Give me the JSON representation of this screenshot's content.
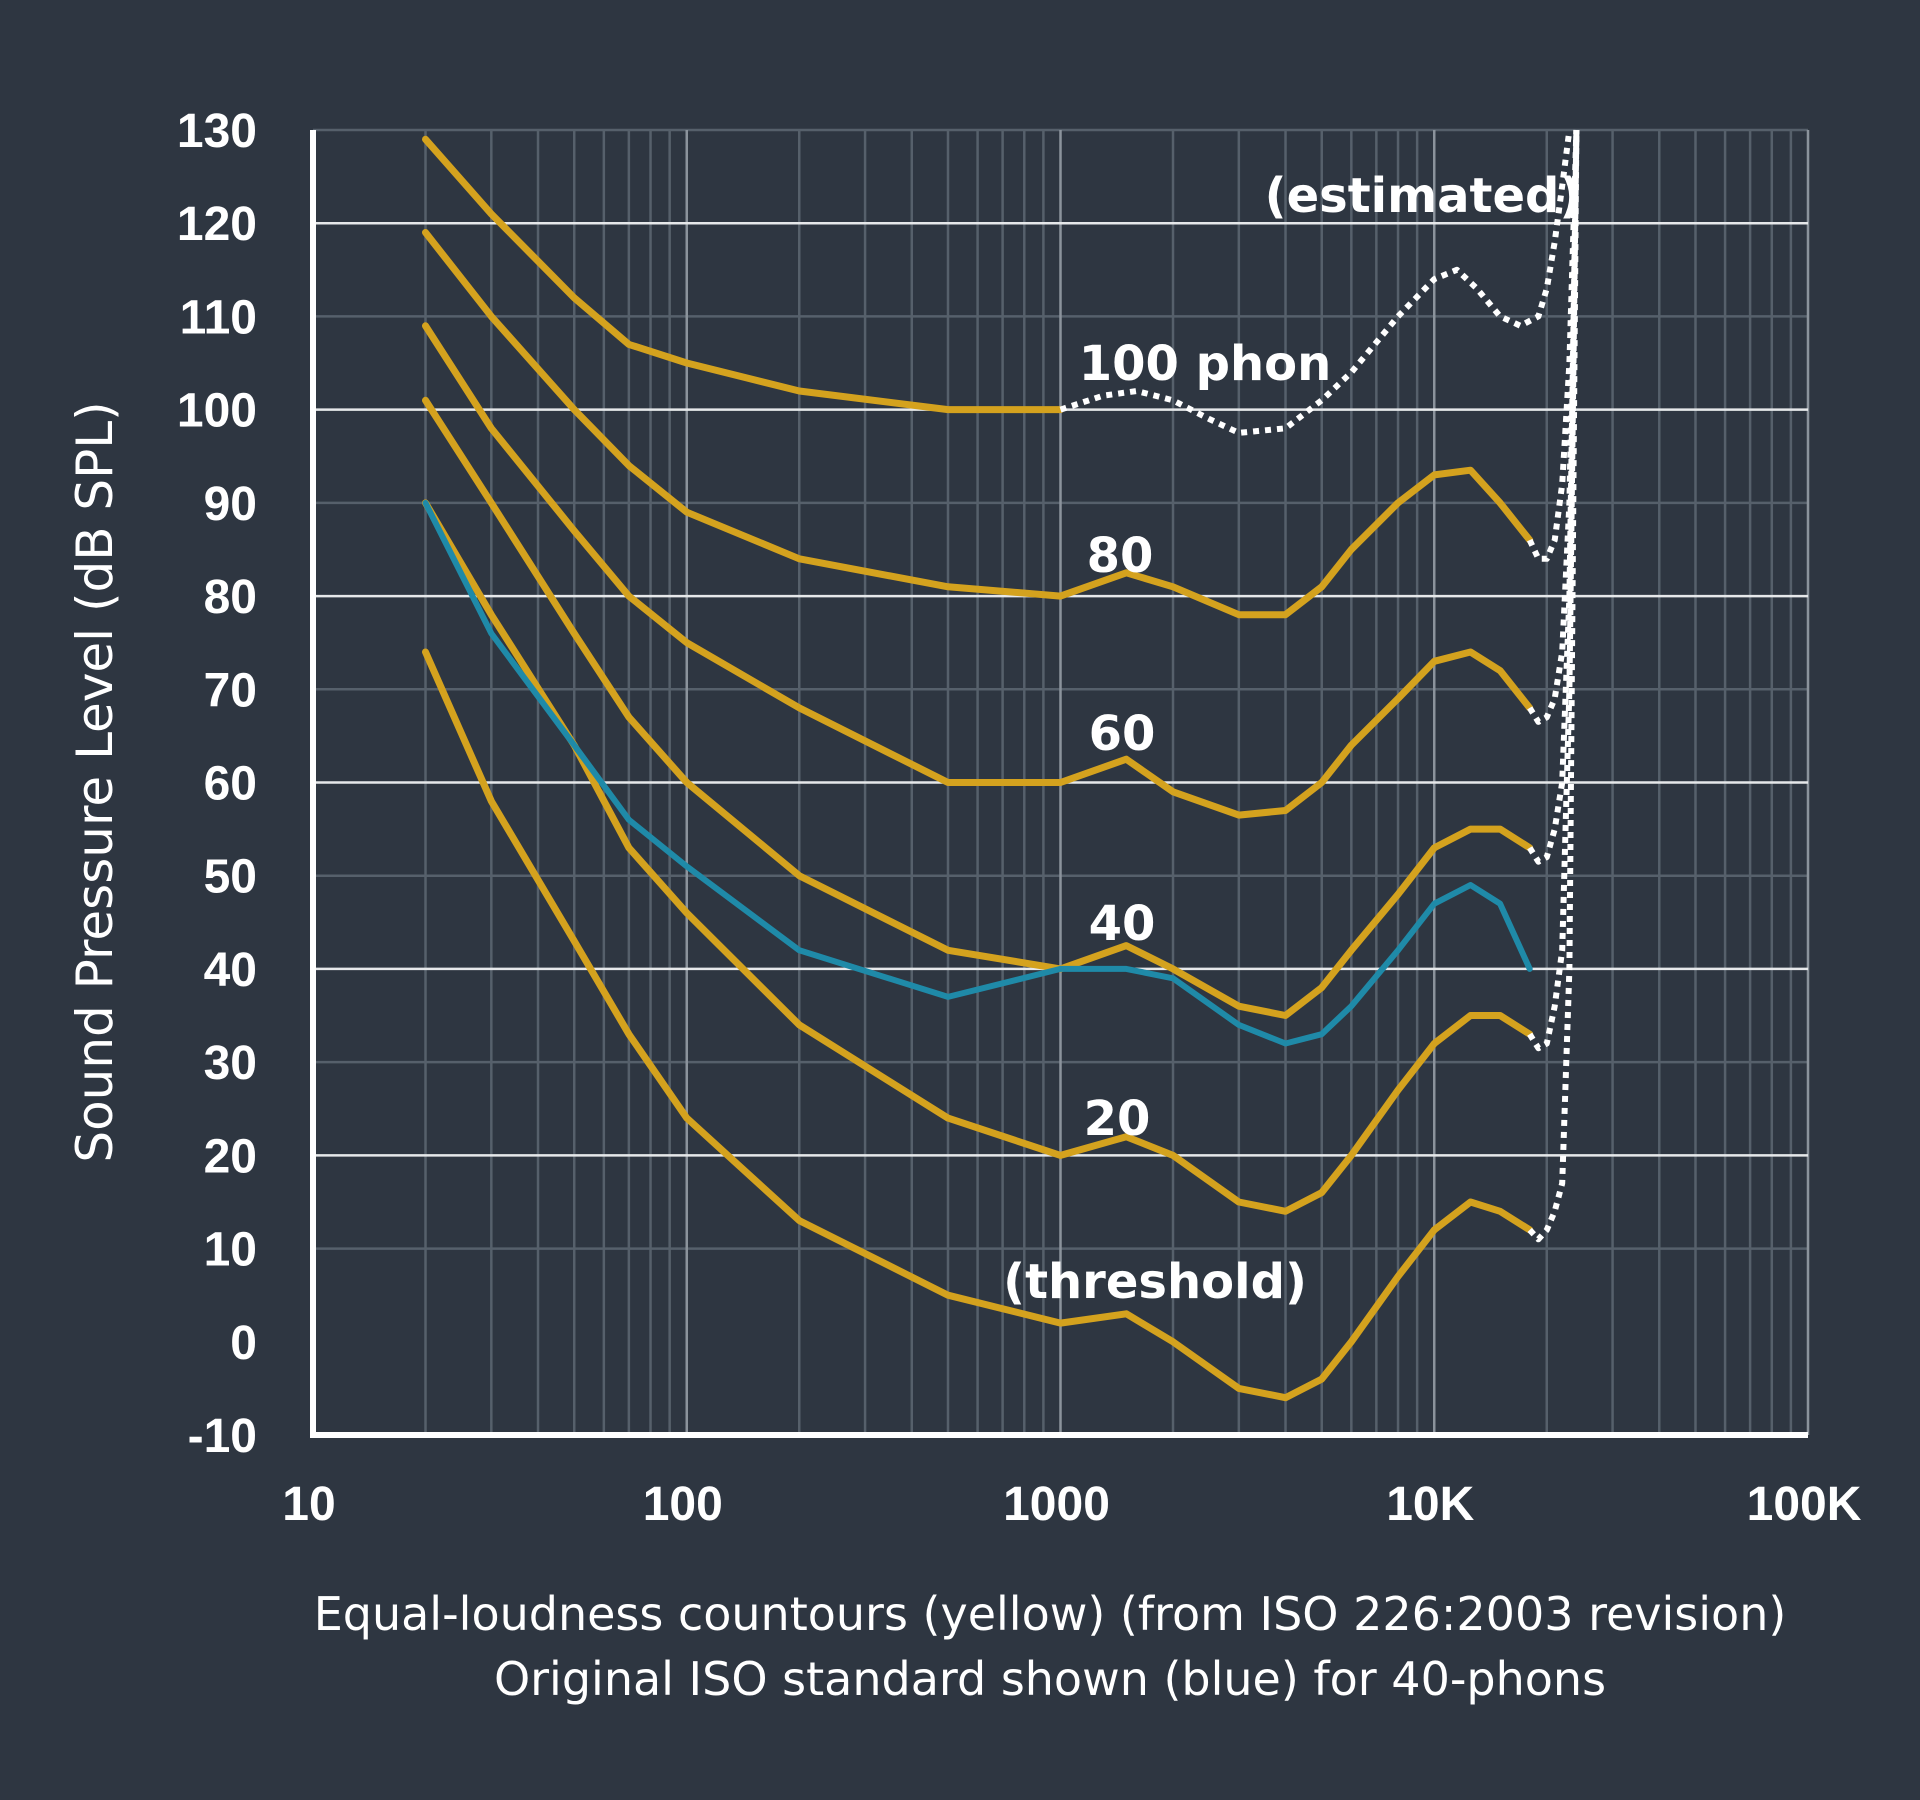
{
  "chart_data": {
    "type": "line",
    "xscale": "log",
    "xlim": [
      10,
      100000
    ],
    "ylim": [
      -10,
      130
    ],
    "ylabel": "Sound Pressure Level (dB SPL)",
    "x_tick_labels": [
      "10",
      "100",
      "1000",
      "10K",
      "100K"
    ],
    "x_tick_values": [
      10,
      100,
      1000,
      10000,
      100000
    ],
    "y_ticks": [
      -10,
      0,
      10,
      20,
      30,
      40,
      50,
      60,
      70,
      80,
      90,
      100,
      110,
      120,
      130
    ],
    "grid": true,
    "colors": {
      "iso2003": "#d4a21e",
      "original": "#1f8aa8",
      "estimated": "#ffffff",
      "background": "#2e3641",
      "grid": "#56606b"
    },
    "annotations": [
      "100 phon",
      "80",
      "60",
      "40",
      "20",
      "(threshold)",
      "(estimated)"
    ],
    "caption": [
      "Equal-loudness countours (yellow) (from ISO 226:2003 revision)",
      "Original ISO standard shown (blue) for 40-phons"
    ],
    "series": [
      {
        "group": "yellow",
        "points": [
          [
            20,
            74
          ],
          [
            30,
            58
          ],
          [
            50,
            43
          ],
          [
            70,
            33
          ],
          [
            100,
            24
          ],
          [
            200,
            13
          ],
          [
            500,
            5
          ],
          [
            1000,
            2
          ],
          [
            1500,
            3
          ],
          [
            2000,
            0
          ],
          [
            3000,
            -5
          ],
          [
            4000,
            -6
          ],
          [
            5000,
            -4
          ],
          [
            6000,
            0
          ],
          [
            8000,
            7
          ],
          [
            10000,
            12
          ],
          [
            12500,
            15
          ],
          [
            15000,
            14
          ],
          [
            18000,
            12
          ]
        ]
      },
      {
        "group": "yellow",
        "points": [
          [
            20,
            90
          ],
          [
            30,
            78
          ],
          [
            50,
            64
          ],
          [
            70,
            53
          ],
          [
            100,
            46
          ],
          [
            200,
            34
          ],
          [
            500,
            24
          ],
          [
            1000,
            20
          ],
          [
            1500,
            22
          ],
          [
            2000,
            20
          ],
          [
            3000,
            15
          ],
          [
            4000,
            14
          ],
          [
            5000,
            16
          ],
          [
            6000,
            20
          ],
          [
            8000,
            27
          ],
          [
            10000,
            32
          ],
          [
            12500,
            35
          ],
          [
            15000,
            35
          ],
          [
            18000,
            33
          ]
        ]
      },
      {
        "group": "yellow",
        "points": [
          [
            20,
            101
          ],
          [
            30,
            90
          ],
          [
            50,
            76
          ],
          [
            70,
            67
          ],
          [
            100,
            60
          ],
          [
            200,
            50
          ],
          [
            500,
            42
          ],
          [
            1000,
            40
          ],
          [
            1500,
            42.5
          ],
          [
            2000,
            40
          ],
          [
            3000,
            36
          ],
          [
            4000,
            35
          ],
          [
            5000,
            38
          ],
          [
            6000,
            42
          ],
          [
            8000,
            48
          ],
          [
            10000,
            53
          ],
          [
            12500,
            55
          ],
          [
            15000,
            55
          ],
          [
            18000,
            53
          ]
        ]
      },
      {
        "group": "yellow",
        "points": [
          [
            20,
            109
          ],
          [
            30,
            98
          ],
          [
            50,
            87
          ],
          [
            70,
            80
          ],
          [
            100,
            75
          ],
          [
            200,
            68
          ],
          [
            500,
            60
          ],
          [
            1000,
            60
          ],
          [
            1500,
            62.5
          ],
          [
            2000,
            59
          ],
          [
            3000,
            56.5
          ],
          [
            4000,
            57
          ],
          [
            5000,
            60
          ],
          [
            6000,
            64
          ],
          [
            8000,
            69
          ],
          [
            10000,
            73
          ],
          [
            12500,
            74
          ],
          [
            15000,
            72
          ],
          [
            18000,
            68
          ]
        ]
      },
      {
        "group": "yellow",
        "points": [
          [
            20,
            119
          ],
          [
            30,
            110
          ],
          [
            50,
            100
          ],
          [
            70,
            94
          ],
          [
            100,
            89
          ],
          [
            200,
            84
          ],
          [
            500,
            81
          ],
          [
            1000,
            80
          ],
          [
            1500,
            82.5
          ],
          [
            2000,
            81
          ],
          [
            3000,
            78
          ],
          [
            4000,
            78
          ],
          [
            5000,
            81
          ],
          [
            6000,
            85
          ],
          [
            8000,
            90
          ],
          [
            10000,
            93
          ],
          [
            12500,
            93.5
          ],
          [
            15000,
            90
          ],
          [
            18000,
            86
          ]
        ]
      },
      {
        "group": "yellow",
        "points": [
          [
            20,
            129
          ],
          [
            30,
            121
          ],
          [
            50,
            112
          ],
          [
            70,
            107
          ],
          [
            100,
            105
          ],
          [
            200,
            102
          ],
          [
            500,
            100
          ],
          [
            1000,
            100
          ]
        ]
      },
      {
        "group": "blue",
        "points": [
          [
            20,
            90
          ],
          [
            30,
            76
          ],
          [
            50,
            64
          ],
          [
            70,
            56
          ],
          [
            100,
            51
          ],
          [
            200,
            42
          ],
          [
            500,
            37
          ],
          [
            1000,
            40
          ],
          [
            1500,
            40
          ],
          [
            2000,
            39
          ],
          [
            3000,
            34
          ],
          [
            4000,
            32
          ],
          [
            5000,
            33
          ],
          [
            6000,
            36
          ],
          [
            8000,
            42
          ],
          [
            10000,
            47
          ],
          [
            12500,
            49
          ],
          [
            15000,
            47
          ],
          [
            18000,
            40
          ]
        ]
      },
      {
        "group": "estimated",
        "points": [
          [
            1000,
            100
          ],
          [
            1300,
            101.5
          ],
          [
            1600,
            102
          ],
          [
            2000,
            101
          ],
          [
            2500,
            99
          ],
          [
            3000,
            97.5
          ],
          [
            4000,
            98
          ],
          [
            5000,
            101
          ],
          [
            6000,
            104
          ],
          [
            8000,
            110
          ],
          [
            10000,
            114
          ],
          [
            11500,
            115
          ],
          [
            13000,
            113
          ],
          [
            15000,
            110
          ],
          [
            17000,
            109
          ],
          [
            19000,
            110
          ],
          [
            20000,
            113
          ],
          [
            21000,
            118
          ],
          [
            22000,
            124
          ],
          [
            23000,
            130
          ]
        ]
      },
      {
        "group": "estimated",
        "points": [
          [
            18000,
            86
          ],
          [
            19000,
            84
          ],
          [
            20000,
            84
          ],
          [
            21000,
            86
          ],
          [
            22000,
            92
          ],
          [
            23000,
            105
          ],
          [
            24000,
            130
          ]
        ]
      },
      {
        "group": "estimated",
        "points": [
          [
            18000,
            68
          ],
          [
            19000,
            66.5
          ],
          [
            20000,
            67
          ],
          [
            21000,
            69
          ],
          [
            22000,
            74
          ],
          [
            23000,
            90
          ],
          [
            24000,
            130
          ]
        ]
      },
      {
        "group": "estimated",
        "points": [
          [
            18000,
            53
          ],
          [
            19000,
            51.5
          ],
          [
            20000,
            52
          ],
          [
            21000,
            55
          ],
          [
            22000,
            60
          ],
          [
            23000,
            80
          ],
          [
            24000,
            130
          ]
        ]
      },
      {
        "group": "estimated",
        "points": [
          [
            18000,
            33
          ],
          [
            19000,
            31.5
          ],
          [
            20000,
            32
          ],
          [
            21000,
            36
          ],
          [
            22000,
            42
          ],
          [
            23000,
            70
          ],
          [
            24000,
            130
          ]
        ]
      },
      {
        "group": "estimated",
        "points": [
          [
            18000,
            12
          ],
          [
            19000,
            11
          ],
          [
            20000,
            12
          ],
          [
            21000,
            14
          ],
          [
            22000,
            17
          ],
          [
            23000,
            40
          ],
          [
            24000,
            130
          ]
        ]
      }
    ]
  }
}
